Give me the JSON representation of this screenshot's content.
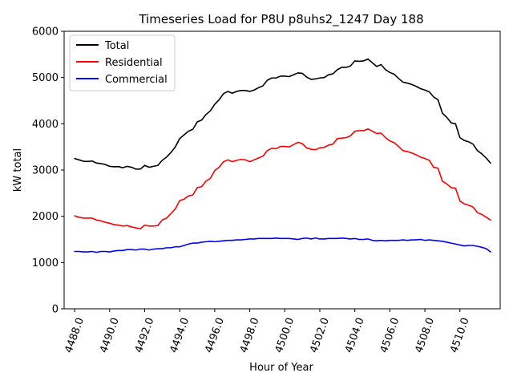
{
  "chart_data": {
    "type": "line",
    "title": "Timeseries Load for P8U p8uhs2_1247  Day 188",
    "xlabel": "Hour of Year",
    "ylabel": "kW total",
    "xlim": [
      4487.4,
      4512.3
    ],
    "ylim": [
      0,
      6000
    ],
    "x_ticks": [
      4488,
      4490,
      4492,
      4494,
      4496,
      4498,
      4500,
      4502,
      4504,
      4506,
      4508,
      4510
    ],
    "x_tick_labels": [
      "4488.0",
      "4490.0",
      "4492.0",
      "4494.0",
      "4496.0",
      "4498.0",
      "4500.0",
      "4502.0",
      "4504.0",
      "4506.0",
      "4508.0",
      "4510.0"
    ],
    "y_ticks": [
      0,
      1000,
      2000,
      3000,
      4000,
      5000,
      6000
    ],
    "y_tick_labels": [
      "0",
      "1000",
      "2000",
      "3000",
      "4000",
      "5000",
      "6000"
    ],
    "legend_position": "top-left",
    "x_start": 4488,
    "x_step": 0.25,
    "series": [
      {
        "name": "Total",
        "color": "#000000",
        "values": [
          3250,
          3220,
          3190,
          3185,
          3195,
          3150,
          3140,
          3120,
          3080,
          3070,
          3075,
          3050,
          3080,
          3060,
          3020,
          3020,
          3100,
          3060,
          3080,
          3100,
          3210,
          3280,
          3380,
          3500,
          3680,
          3760,
          3840,
          3880,
          4040,
          4080,
          4200,
          4280,
          4420,
          4520,
          4650,
          4700,
          4660,
          4700,
          4720,
          4720,
          4700,
          4730,
          4780,
          4820,
          4940,
          4990,
          4990,
          5030,
          5030,
          5020,
          5060,
          5100,
          5090,
          5010,
          4960,
          4970,
          4990,
          5000,
          5060,
          5080,
          5170,
          5220,
          5220,
          5250,
          5360,
          5350,
          5360,
          5400,
          5320,
          5240,
          5280,
          5170,
          5110,
          5070,
          4980,
          4900,
          4880,
          4850,
          4810,
          4760,
          4730,
          4690,
          4580,
          4520,
          4230,
          4140,
          4020,
          4000,
          3700,
          3640,
          3610,
          3560,
          3420,
          3350,
          3260,
          3150
        ]
      },
      {
        "name": "Residential",
        "color": "#ff0000",
        "values": [
          2010,
          1980,
          1960,
          1960,
          1960,
          1920,
          1900,
          1870,
          1850,
          1820,
          1810,
          1790,
          1800,
          1770,
          1750,
          1730,
          1810,
          1790,
          1790,
          1800,
          1920,
          1960,
          2060,
          2160,
          2340,
          2370,
          2440,
          2460,
          2620,
          2640,
          2760,
          2820,
          2990,
          3060,
          3180,
          3220,
          3180,
          3210,
          3230,
          3220,
          3180,
          3220,
          3260,
          3300,
          3420,
          3470,
          3460,
          3510,
          3510,
          3500,
          3550,
          3600,
          3570,
          3480,
          3450,
          3440,
          3480,
          3490,
          3540,
          3560,
          3680,
          3690,
          3700,
          3740,
          3840,
          3850,
          3850,
          3890,
          3840,
          3790,
          3800,
          3700,
          3630,
          3590,
          3510,
          3420,
          3400,
          3370,
          3330,
          3280,
          3250,
          3210,
          3060,
          3040,
          2760,
          2700,
          2620,
          2610,
          2330,
          2270,
          2240,
          2200,
          2080,
          2040,
          1980,
          1920
        ]
      },
      {
        "name": "Commercial",
        "color": "#0000ff",
        "values": [
          1240,
          1240,
          1230,
          1230,
          1240,
          1220,
          1240,
          1240,
          1230,
          1250,
          1260,
          1260,
          1280,
          1280,
          1270,
          1290,
          1290,
          1270,
          1290,
          1300,
          1300,
          1320,
          1320,
          1340,
          1340,
          1370,
          1400,
          1420,
          1420,
          1440,
          1450,
          1460,
          1450,
          1460,
          1470,
          1480,
          1480,
          1490,
          1490,
          1500,
          1510,
          1510,
          1520,
          1520,
          1520,
          1520,
          1530,
          1520,
          1520,
          1520,
          1510,
          1500,
          1520,
          1530,
          1510,
          1530,
          1510,
          1510,
          1520,
          1520,
          1520,
          1530,
          1520,
          1510,
          1520,
          1500,
          1500,
          1510,
          1480,
          1470,
          1480,
          1470,
          1480,
          1480,
          1480,
          1490,
          1480,
          1490,
          1490,
          1500,
          1480,
          1490,
          1480,
          1470,
          1460,
          1440,
          1420,
          1400,
          1380,
          1360,
          1370,
          1370,
          1350,
          1330,
          1300,
          1230
        ]
      }
    ]
  }
}
